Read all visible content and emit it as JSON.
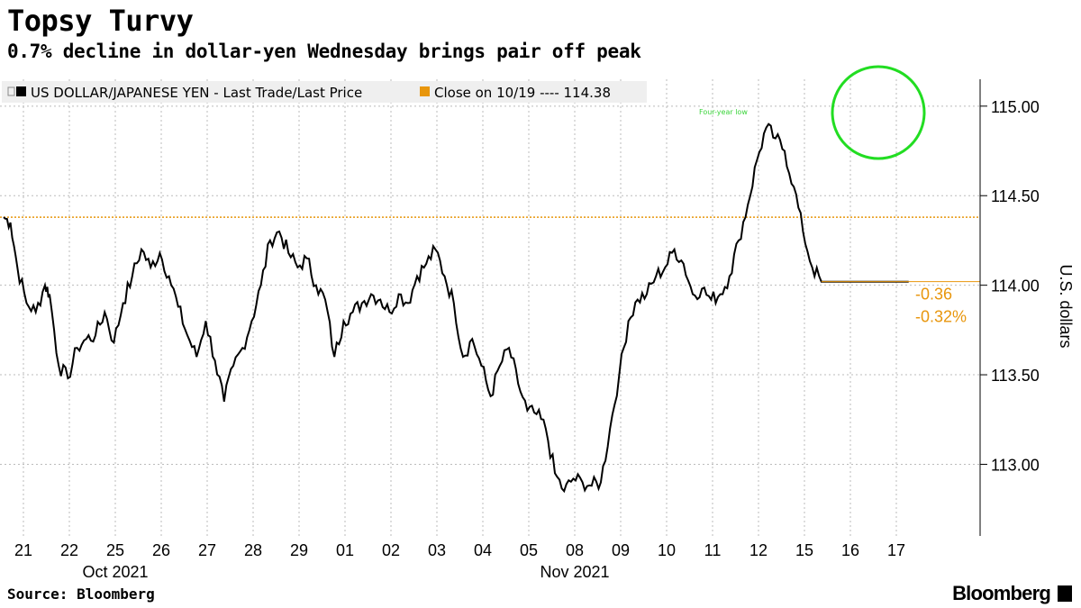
{
  "header": {
    "title": "Topsy Turvy",
    "subtitle": "0.7% decline in dollar-yen Wednesday brings pair off peak"
  },
  "footer": {
    "source": "Source: Bloomberg",
    "brand": "Bloomberg"
  },
  "colors": {
    "series": "#000000",
    "close_line": "#e8960c",
    "highlight_circle": "#22dd22",
    "grid": "#bbbbbb"
  },
  "chart_data": {
    "type": "line",
    "title": "Topsy Turvy",
    "subtitle": "0.7% decline in dollar-yen Wednesday brings pair off peak",
    "ylabel": "U.S. dollars",
    "ylim": [
      112.6,
      115.15
    ],
    "yticks": [
      113.0,
      113.5,
      114.0,
      114.5,
      115.0
    ],
    "ytick_labels": [
      "113.00",
      "113.50",
      "114.00",
      "114.50",
      "115.00"
    ],
    "xtick_labels": [
      "21",
      "22",
      "25",
      "26",
      "27",
      "28",
      "29",
      "01",
      "02",
      "03",
      "04",
      "05",
      "08",
      "09",
      "10",
      "11",
      "12",
      "15",
      "16",
      "17"
    ],
    "month_labels": [
      {
        "label": "Oct 2021",
        "after_tick": 2
      },
      {
        "label": "Nov 2021",
        "after_tick": 12
      }
    ],
    "legend": [
      {
        "label": "US DOLLAR/JAPANESE YEN - Last Trade/Last Price",
        "color": "#000000"
      },
      {
        "label": "Close on 10/19 ---- 114.38",
        "color": "#e8960c"
      }
    ],
    "close_ref": 114.38,
    "last_value": 114.02,
    "change_abs": "-0.36",
    "change_pct": "-0.32%",
    "annotation": "Four-year low",
    "series": [
      {
        "name": "US DOLLAR/JAPANESE YEN",
        "x": [
          0,
          0.15,
          0.3,
          0.5,
          0.7,
          0.9,
          1.0,
          1.2,
          1.4,
          1.6,
          1.8,
          2.0,
          2.2,
          2.4,
          2.6,
          2.8,
          3.0,
          3.2,
          3.4,
          3.6,
          3.8,
          4.0,
          4.2,
          4.4,
          4.6,
          4.8,
          5.0,
          5.2,
          5.4,
          5.6,
          5.8,
          6.0,
          6.2,
          6.4,
          6.6,
          6.8,
          7.0,
          7.2,
          7.4,
          7.6,
          7.8,
          8.0,
          8.2,
          8.4,
          8.6,
          8.8,
          9.0,
          9.2,
          9.4,
          9.6,
          9.8,
          10.0,
          10.2,
          10.4,
          10.6,
          10.8,
          11.0,
          11.2,
          11.4,
          11.6,
          11.8,
          12.0,
          12.2,
          12.4,
          12.6,
          12.8,
          13.0,
          13.2,
          13.4,
          13.6,
          13.8,
          14.0,
          14.2,
          14.4,
          14.6,
          14.8,
          15.0,
          15.2,
          15.4,
          15.6,
          15.8,
          16.0,
          16.2,
          16.4,
          16.6,
          16.8,
          17.0,
          17.2,
          17.4,
          17.6,
          17.8,
          18.0,
          18.2,
          18.4,
          18.6,
          18.8,
          19.0,
          19.2,
          19.4,
          19.6,
          19.7
        ],
        "values": [
          114.38,
          114.35,
          114.1,
          113.9,
          113.85,
          114.0,
          113.95,
          113.55,
          113.48,
          113.65,
          113.7,
          113.72,
          113.85,
          113.68,
          113.9,
          114.05,
          114.2,
          114.1,
          114.18,
          114.05,
          113.88,
          113.72,
          113.6,
          113.8,
          113.58,
          113.35,
          113.55,
          113.65,
          113.8,
          114.0,
          114.25,
          114.3,
          114.18,
          114.1,
          114.15,
          114.0,
          113.92,
          113.6,
          113.8,
          113.85,
          113.9,
          113.95,
          113.92,
          113.85,
          113.95,
          113.9,
          114.05,
          114.12,
          114.2,
          114.05,
          113.9,
          113.6,
          113.7,
          113.55,
          113.38,
          113.55,
          113.65,
          113.45,
          113.3,
          113.28,
          113.2,
          112.95,
          112.85,
          112.92,
          112.9,
          112.88,
          112.9,
          113.2,
          113.5,
          113.8,
          113.92,
          113.95,
          114.05,
          114.1,
          114.2,
          114.12,
          113.95,
          113.98,
          113.92,
          113.95,
          114.05,
          114.25,
          114.45,
          114.7,
          114.88,
          114.82,
          114.75,
          114.55,
          114.3,
          114.1,
          114.02,
          114.02,
          114.02,
          114.02,
          114.02,
          114.02,
          114.02,
          114.02,
          114.02,
          114.02,
          114.02
        ]
      }
    ]
  }
}
